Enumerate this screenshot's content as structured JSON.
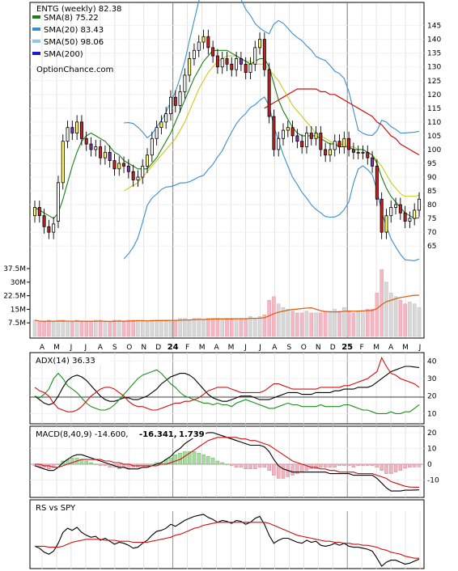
{
  "chart_data": [
    {
      "type": "candlestick",
      "symbol_label": "ENTG (weekly) 82.38",
      "legend": [
        {
          "label": "SMA(8) 75.22",
          "color": "#1a7f1a"
        },
        {
          "label": "SMA(20) 83.43",
          "color": "#3a8fd0"
        },
        {
          "label": "SMA(50) 98.06",
          "color": "#8fc8ee"
        },
        {
          "label": "SMA(200)",
          "color": "#1a1acc"
        }
      ],
      "watermark": "OptionChance.com",
      "y_ticks": [
        "145",
        "140",
        "135",
        "130",
        "125",
        "120",
        "115",
        "110",
        "105",
        "100",
        "95",
        "90",
        "85",
        "80",
        "75",
        "70",
        "65"
      ],
      "ylim": [
        58,
        149
      ],
      "volume_ticks": [
        "37.5M",
        "30M",
        "22.5M",
        "15M",
        "7.5M"
      ],
      "x_ticks": [
        "A",
        "M",
        "J",
        "J",
        "A",
        "S",
        "O",
        "N",
        "D",
        "24",
        "F",
        "M",
        "A",
        "M",
        "J",
        "J",
        "A",
        "S",
        "O",
        "N",
        "D",
        "25",
        "F",
        "M",
        "A",
        "M",
        "J"
      ],
      "x_tick_bold": [
        "24",
        "25"
      ],
      "series": {
        "close": [
          79,
          76,
          72,
          70,
          73,
          88,
          103,
          108,
          106,
          110,
          104,
          102,
          100,
          101,
          97,
          99,
          96,
          93,
          95,
          94,
          92,
          89,
          90,
          94,
          98,
          104,
          108,
          110,
          113,
          119,
          116,
          121,
          127,
          133,
          136,
          139,
          141,
          137,
          134,
          130,
          133,
          131,
          129,
          133,
          131,
          128,
          131,
          137,
          140,
          129,
          112,
          100,
          104,
          107,
          108,
          105,
          103,
          101,
          106,
          104,
          106,
          100,
          98,
          100,
          103,
          101,
          104,
          100,
          99,
          99,
          99,
          97,
          94,
          82,
          70,
          76,
          79,
          80,
          77,
          74,
          75,
          78,
          82
        ],
        "open": [
          76,
          79,
          76,
          72,
          70,
          74,
          88,
          103,
          108,
          106,
          110,
          104,
          102,
          100,
          101,
          97,
          99,
          96,
          93,
          95,
          94,
          92,
          89,
          90,
          94,
          98,
          104,
          108,
          110,
          113,
          119,
          116,
          121,
          127,
          133,
          136,
          139,
          141,
          137,
          134,
          130,
          133,
          131,
          129,
          133,
          131,
          128,
          131,
          137,
          140,
          129,
          112,
          100,
          104,
          107,
          108,
          105,
          103,
          101,
          106,
          104,
          106,
          100,
          98,
          100,
          103,
          101,
          104,
          100,
          99,
          99,
          99,
          97,
          94,
          82,
          70,
          76,
          79,
          80,
          77,
          74,
          75,
          78
        ],
        "sma8": [
          79,
          78,
          77,
          76,
          75,
          77,
          82,
          88,
          94,
          99,
          103,
          105,
          106,
          105,
          104,
          103,
          101,
          99,
          98,
          96,
          95,
          94,
          93,
          93,
          93,
          95,
          97,
          100,
          103,
          106,
          110,
          114,
          118,
          122,
          126,
          129,
          132,
          134,
          136,
          136,
          136,
          136,
          135,
          134,
          133,
          132,
          131,
          132,
          133,
          133,
          130,
          124,
          118,
          114,
          111,
          108,
          106,
          105,
          105,
          105,
          105,
          104,
          103,
          102,
          102,
          101,
          101,
          101,
          100,
          100,
          100,
          99,
          98,
          95,
          90,
          86,
          83,
          81,
          79,
          77,
          76,
          75,
          75.22
        ],
        "sma20": [
          null,
          null,
          null,
          null,
          null,
          null,
          null,
          null,
          null,
          null,
          null,
          null,
          null,
          null,
          null,
          null,
          null,
          null,
          null,
          85,
          86,
          87,
          88,
          90,
          92,
          94,
          96,
          98,
          100,
          102,
          104,
          107,
          110,
          114,
          118,
          122,
          125,
          128,
          130,
          132,
          133,
          134,
          134,
          134,
          133,
          132,
          132,
          131,
          131,
          131,
          129,
          127,
          125,
          122,
          119,
          116,
          114,
          112,
          110,
          108,
          106,
          105,
          104,
          103,
          102,
          102,
          102,
          101,
          101,
          100,
          100,
          99,
          98,
          96,
          94,
          91,
          88,
          86,
          84,
          83,
          83,
          83,
          83.43
        ],
        "sma50": [
          null,
          null,
          null,
          null,
          null,
          null,
          null,
          null,
          null,
          null,
          null,
          null,
          null,
          null,
          null,
          null,
          null,
          null,
          null,
          null,
          null,
          null,
          null,
          null,
          null,
          null,
          null,
          null,
          null,
          null,
          null,
          null,
          null,
          null,
          null,
          null,
          null,
          null,
          null,
          null,
          null,
          null,
          null,
          null,
          null,
          null,
          null,
          null,
          null,
          115,
          116,
          117,
          118,
          119,
          120,
          121,
          122,
          122,
          122,
          122,
          122,
          121,
          121,
          120,
          120,
          119,
          118,
          117,
          116,
          115,
          114,
          113,
          112,
          110,
          109,
          107,
          105,
          104,
          102,
          101,
          100,
          99,
          98.06
        ],
        "volume_millions": [
          9,
          8,
          8,
          9,
          8,
          9,
          9,
          8,
          8,
          9,
          8,
          8,
          8,
          9,
          9,
          8,
          8,
          9,
          9,
          8,
          9,
          9,
          9,
          9,
          8,
          9,
          9,
          9,
          9,
          9,
          9,
          10,
          10,
          9,
          10,
          10,
          9,
          10,
          10,
          10,
          9,
          10,
          10,
          10,
          10,
          10,
          11,
          10,
          11,
          12,
          20,
          22,
          18,
          16,
          15,
          14,
          13,
          13,
          14,
          13,
          13,
          13,
          14,
          14,
          15,
          14,
          16,
          14,
          13,
          14,
          14,
          15,
          15,
          24,
          37,
          30,
          24,
          22,
          20,
          18,
          19,
          18,
          16
        ]
      }
    },
    {
      "type": "line",
      "label": "ADX(14) 36.33",
      "y_ticks": [
        "40",
        "30",
        "20",
        "10"
      ],
      "ylim": [
        6,
        43
      ],
      "series": [
        {
          "name": "ADX",
          "color": "#000000",
          "values": [
            20,
            18,
            16,
            15,
            16,
            20,
            25,
            29,
            31,
            32,
            31,
            29,
            26,
            23,
            20,
            18,
            17,
            17,
            18,
            19,
            19,
            18,
            18,
            19,
            20,
            22,
            24,
            27,
            29,
            31,
            32,
            33,
            33,
            32,
            30,
            27,
            24,
            21,
            19,
            18,
            17,
            17,
            18,
            19,
            20,
            20,
            20,
            19,
            18,
            18,
            18,
            19,
            20,
            21,
            22,
            22,
            22,
            21,
            21,
            21,
            22,
            22,
            22,
            22,
            23,
            23,
            24,
            24,
            24,
            25,
            25,
            25,
            26,
            28,
            30,
            32,
            34,
            35,
            36,
            37,
            37,
            36.6,
            36.33
          ]
        },
        {
          "name": "+DI",
          "color": "#1a8f1a",
          "values": [
            20,
            19,
            21,
            24,
            30,
            33,
            30,
            26,
            24,
            22,
            19,
            16,
            14,
            13,
            12,
            12,
            13,
            15,
            18,
            21,
            24,
            27,
            30,
            32,
            33,
            34,
            35,
            33,
            30,
            27,
            25,
            22,
            20,
            19,
            18,
            17,
            16,
            16,
            15,
            16,
            15,
            15,
            14,
            16,
            17,
            18,
            17,
            16,
            15,
            14,
            13,
            13,
            14,
            15,
            16,
            15,
            15,
            14,
            14,
            14,
            14,
            15,
            14,
            14,
            14,
            14,
            15,
            15,
            14,
            13,
            12,
            12,
            11,
            10,
            10,
            10,
            11,
            10,
            10,
            11,
            11,
            13,
            15
          ]
        },
        {
          "name": "-DI",
          "color": "#d01010",
          "values": [
            25,
            23,
            22,
            20,
            16,
            13,
            12,
            11,
            11,
            12,
            14,
            17,
            20,
            22,
            24,
            25,
            25,
            24,
            22,
            20,
            17,
            15,
            14,
            14,
            13,
            12,
            12,
            13,
            14,
            15,
            16,
            16,
            17,
            17,
            18,
            19,
            21,
            23,
            24,
            25,
            25,
            25,
            24,
            23,
            22,
            22,
            22,
            22,
            22,
            23,
            25,
            27,
            27,
            26,
            25,
            24,
            24,
            24,
            24,
            24,
            24,
            25,
            25,
            25,
            25,
            25,
            26,
            26,
            27,
            28,
            29,
            30,
            32,
            34,
            42,
            37,
            33,
            32,
            30,
            29,
            28,
            27,
            25
          ]
        }
      ]
    },
    {
      "type": "line",
      "label": "MACD(8,40,9) -14.600,",
      "macd_value": "-16.341,",
      "macd_value_color": "#d01010",
      "signal_value": "1.739",
      "signal_value_color": "#2050c0",
      "y_ticks": [
        "20",
        "10",
        "0",
        "-10"
      ],
      "ylim": [
        -19,
        22
      ],
      "series": [
        {
          "name": "MACD",
          "color": "#000000",
          "values": [
            -1,
            -2,
            -3,
            -4,
            -4,
            -2,
            1,
            3,
            5,
            6,
            6,
            5,
            4,
            3,
            2,
            1,
            0,
            -1,
            -2,
            -2,
            -3,
            -3,
            -3,
            -2,
            -2,
            -1,
            0,
            1,
            3,
            5,
            8,
            10,
            13,
            15,
            17,
            18,
            19,
            20,
            20,
            19,
            18,
            17,
            16,
            15,
            14,
            13,
            12,
            12,
            12,
            11,
            8,
            3,
            -1,
            -3,
            -4,
            -5,
            -5,
            -5,
            -5,
            -5,
            -5,
            -5,
            -5,
            -6,
            -6,
            -6,
            -6,
            -6,
            -7,
            -7,
            -7,
            -7,
            -7,
            -9,
            -12,
            -15,
            -17,
            -17,
            -17,
            -16.5,
            -16.5,
            -16.4,
            -16.3
          ]
        },
        {
          "name": "Signal",
          "color": "#d01010",
          "values": [
            0,
            0,
            -1,
            -1,
            -2,
            -2,
            -1,
            0,
            1,
            2,
            3,
            3,
            3,
            3,
            3,
            2,
            2,
            1,
            1,
            0,
            0,
            -1,
            -1,
            -1,
            -1,
            -1,
            -1,
            0,
            0,
            1,
            2,
            3,
            5,
            7,
            9,
            11,
            13,
            15,
            16,
            17,
            17,
            17,
            17,
            17,
            16,
            16,
            15,
            15,
            14,
            13,
            12,
            10,
            8,
            6,
            4,
            2,
            1,
            0,
            -1,
            -2,
            -2,
            -3,
            -3,
            -4,
            -4,
            -5,
            -5,
            -5,
            -5,
            -6,
            -6,
            -6,
            -6,
            -7,
            -8,
            -9,
            -11,
            -12,
            -13,
            -14,
            -14.5,
            -14.6,
            -14.6
          ]
        }
      ]
    },
    {
      "type": "line",
      "label": "RS vs SPY",
      "series": [
        {
          "name": "RS",
          "color": "#000000",
          "values": [
            52,
            50,
            46,
            44,
            47,
            55,
            66,
            70,
            68,
            71,
            66,
            63,
            61,
            62,
            58,
            60,
            57,
            54,
            56,
            55,
            53,
            50,
            51,
            55,
            58,
            63,
            67,
            68,
            70,
            74,
            72,
            75,
            78,
            80,
            82,
            83,
            84,
            81,
            79,
            76,
            78,
            77,
            75,
            78,
            77,
            74,
            76,
            80,
            82,
            74,
            63,
            55,
            58,
            60,
            60,
            58,
            56,
            55,
            58,
            56,
            57,
            53,
            52,
            53,
            55,
            53,
            55,
            52,
            51,
            51,
            50,
            49,
            47,
            40,
            32,
            36,
            38,
            38,
            36,
            34,
            35,
            37,
            39
          ]
        },
        {
          "name": "RS avg",
          "color": "#d01010",
          "values": [
            52,
            52,
            52,
            51,
            51,
            51,
            52,
            54,
            56,
            57,
            58,
            59,
            59,
            59,
            59,
            58,
            58,
            58,
            57,
            57,
            57,
            56,
            56,
            56,
            56,
            57,
            58,
            59,
            60,
            61,
            63,
            64,
            66,
            68,
            70,
            71,
            73,
            74,
            75,
            76,
            76,
            76,
            76,
            76,
            76,
            76,
            76,
            76,
            76,
            76,
            75,
            73,
            71,
            69,
            67,
            65,
            63,
            62,
            61,
            60,
            59,
            58,
            57,
            57,
            56,
            56,
            55,
            55,
            54,
            54,
            53,
            53,
            52,
            51,
            49,
            48,
            46,
            45,
            44,
            42,
            41,
            40,
            40
          ]
        }
      ]
    }
  ]
}
